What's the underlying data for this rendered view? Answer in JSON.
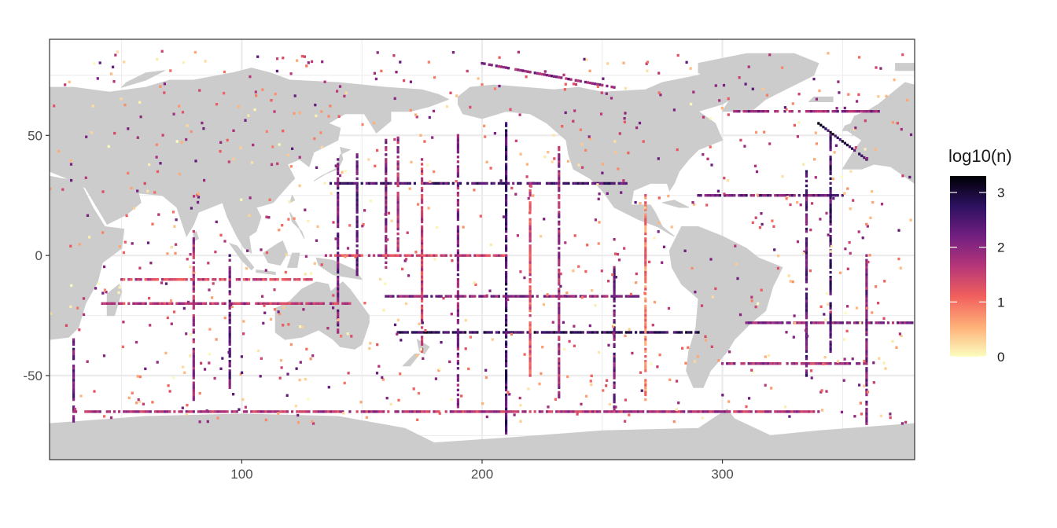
{
  "chart_data": {
    "type": "heatmap",
    "title": "",
    "xlabel": "",
    "ylabel": "",
    "xlim": [
      20,
      380
    ],
    "ylim": [
      -85,
      90
    ],
    "x_ticks": [
      100,
      200,
      300
    ],
    "y_ticks": [
      50,
      0,
      -50
    ],
    "x_tick_labels": [
      "100",
      "200",
      "300"
    ],
    "y_tick_labels": [
      "50",
      "0",
      "-50"
    ],
    "grid": true,
    "colors": {
      "panel_background": "#ffffff",
      "land": "#cccccc",
      "gridline": "#ebebeb",
      "panel_border": "#333333"
    },
    "legend": {
      "title": "log10(n)",
      "position": "right",
      "breaks": [
        3,
        2,
        1,
        0
      ],
      "break_labels": [
        "3",
        "2",
        "1",
        "0"
      ],
      "range": [
        0,
        3.3
      ],
      "palette": [
        "#fcfdbf",
        "#feb078",
        "#f1605d",
        "#b63679",
        "#721f81",
        "#2d1160",
        "#000004"
      ]
    },
    "tracks": [
      {
        "lon": [
          140,
          140
        ],
        "lat": [
          40,
          -32
        ],
        "log10n": 2.2
      },
      {
        "lon": [
          148,
          148
        ],
        "lat": [
          42,
          -10
        ],
        "log10n": 2.4
      },
      {
        "lon": [
          160,
          160
        ],
        "lat": [
          48,
          -5
        ],
        "log10n": 2.0
      },
      {
        "lon": [
          165,
          165
        ],
        "lat": [
          50,
          0
        ],
        "log10n": 1.8
      },
      {
        "lon": [
          190,
          190
        ],
        "lat": [
          50,
          -65
        ],
        "log10n": 2.0
      },
      {
        "lon": [
          210,
          210
        ],
        "lat": [
          55,
          -75
        ],
        "log10n": 2.6
      },
      {
        "lon": [
          232,
          232
        ],
        "lat": [
          45,
          -60
        ],
        "log10n": 1.8
      },
      {
        "lon": [
          137,
          260
        ],
        "lat": [
          30,
          30
        ],
        "log10n": 2.5
      },
      {
        "lon": [
          165,
          290
        ],
        "lat": [
          -32,
          -32
        ],
        "log10n": 2.7
      },
      {
        "lon": [
          160,
          265
        ],
        "lat": [
          -17,
          -17
        ],
        "log10n": 2.0
      },
      {
        "lon": [
          135,
          210
        ],
        "lat": [
          0,
          0
        ],
        "log10n": 1.5
      },
      {
        "lon": [
          255,
          255
        ],
        "lat": [
          -5,
          -65
        ],
        "log10n": 2.2
      },
      {
        "lon": [
          42,
          145
        ],
        "lat": [
          -20,
          -20
        ],
        "log10n": 1.6
      },
      {
        "lon": [
          30,
          340
        ],
        "lat": [
          -65,
          -65
        ],
        "log10n": 1.7
      },
      {
        "lon": [
          30,
          30
        ],
        "lat": [
          -35,
          -70
        ],
        "log10n": 2.2
      },
      {
        "lon": [
          80,
          80
        ],
        "lat": [
          10,
          -60
        ],
        "log10n": 1.8
      },
      {
        "lon": [
          95,
          95
        ],
        "lat": [
          0,
          -55
        ],
        "log10n": 2.3
      },
      {
        "lon": [
          290,
          350
        ],
        "lat": [
          25,
          25
        ],
        "log10n": 2.2
      },
      {
        "lon": [
          345,
          345
        ],
        "lat": [
          50,
          -40
        ],
        "log10n": 2.5
      },
      {
        "lon": [
          335,
          335
        ],
        "lat": [
          35,
          -50
        ],
        "log10n": 2.4
      },
      {
        "lon": [
          360,
          360
        ],
        "lat": [
          0,
          -70
        ],
        "log10n": 2.1
      },
      {
        "lon": [
          340,
          360
        ],
        "lat": [
          55,
          40
        ],
        "log10n": 2.8
      },
      {
        "lon": [
          305,
          365
        ],
        "lat": [
          60,
          60
        ],
        "log10n": 2.0
      },
      {
        "lon": [
          310,
          380
        ],
        "lat": [
          -28,
          -28
        ],
        "log10n": 2.0
      },
      {
        "lon": [
          300,
          360
        ],
        "lat": [
          -45,
          -45
        ],
        "log10n": 1.8
      },
      {
        "lon": [
          50,
          130
        ],
        "lat": [
          -10,
          -10
        ],
        "log10n": 1.4
      },
      {
        "lon": [
          200,
          255
        ],
        "lat": [
          80,
          70
        ],
        "log10n": 2.0
      },
      {
        "lon": [
          175,
          175
        ],
        "lat": [
          40,
          -40
        ],
        "log10n": 1.5
      },
      {
        "lon": [
          220,
          220
        ],
        "lat": [
          30,
          -50
        ],
        "log10n": 1.3
      },
      {
        "lon": [
          268,
          268
        ],
        "lat": [
          25,
          -60
        ],
        "log10n": 0.9
      }
    ]
  }
}
